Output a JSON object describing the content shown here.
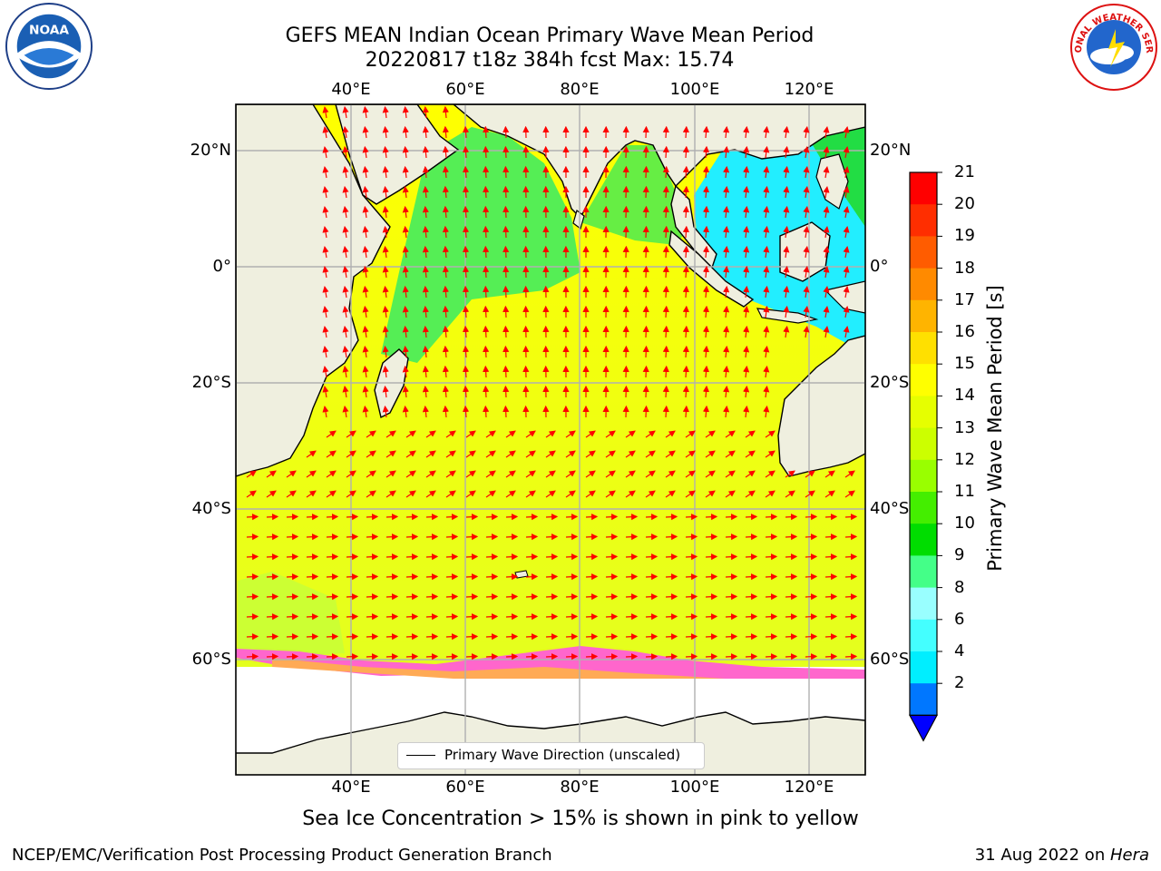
{
  "title_line1": "GEFS MEAN Indian Ocean Primary Wave Mean Period",
  "title_line2": "20220817 t18z 384h fcst   Max: 15.74",
  "top_lon_labels": [
    "40°E",
    "60°E",
    "80°E",
    "100°E",
    "120°E"
  ],
  "bottom_lon_labels": [
    "40°E",
    "60°E",
    "80°E",
    "100°E",
    "120°E"
  ],
  "left_lat_labels": [
    "20°N",
    "0°",
    "20°S",
    "40°S",
    "60°S"
  ],
  "right_lat_labels": [
    "20°N",
    "0°",
    "20°S",
    "40°S",
    "60°S"
  ],
  "colorbar": {
    "title": "Primary Wave Mean Period [s]",
    "ticks": [
      "21",
      "20",
      "19",
      "18",
      "17",
      "16",
      "15",
      "14",
      "13",
      "12",
      "11",
      "10",
      "9",
      "8",
      "6",
      "4",
      "2"
    ],
    "colors": [
      "#ff0000",
      "#ff2e00",
      "#ff5c00",
      "#ff8a00",
      "#ffb400",
      "#ffe000",
      "#ffff00",
      "#e6ff00",
      "#ccff00",
      "#99ff00",
      "#44ee00",
      "#00dd00",
      "#44ff88",
      "#99ffff",
      "#44ffff",
      "#00eeff",
      "#0077ff",
      "#0000ff"
    ]
  },
  "legend_label": "Primary Wave Direction (unscaled)",
  "sea_ice_note": "Sea Ice Concentration > 15% is shown in pink to yellow",
  "footer_left": "NCEP/EMC/Verification Post Processing Product Generation Branch",
  "footer_date": "31 Aug 2022 on ",
  "footer_host": "Hera",
  "logos": [
    "noaa-logo",
    "national-weather-service-logo"
  ],
  "logo_text": {
    "noaa": "NOAA",
    "nws": "NATIONAL WEATHER SERVICE"
  },
  "colors": {
    "land": "#efefdf",
    "ocean_south": "#e8ff1a",
    "ocean_north": "#ffff00",
    "arrow": "#ff0000",
    "grid": "#b0b0b0"
  }
}
